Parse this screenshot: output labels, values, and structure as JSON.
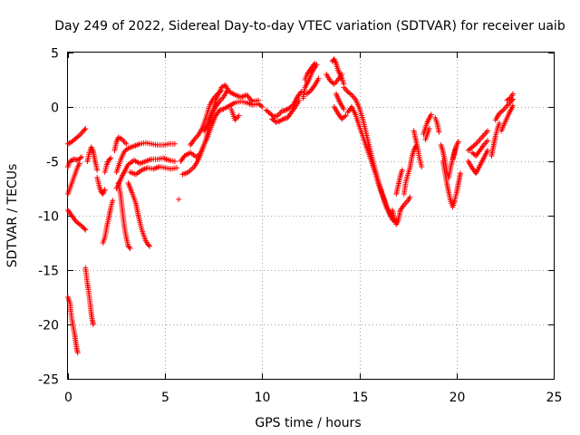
{
  "chart_data": {
    "type": "scatter",
    "title": "Day 249 of 2022, Sidereal Day-to-day VTEC variation (SDTVAR) for receiver uaib",
    "xlabel": "GPS time / hours",
    "ylabel": "SDTVAR / TECUs",
    "xlim": [
      0,
      25
    ],
    "ylim": [
      -25,
      5
    ],
    "xticks": [
      0,
      5,
      10,
      15,
      20,
      25
    ],
    "yticks": [
      -25,
      -20,
      -15,
      -10,
      -5,
      0,
      5
    ],
    "grid": true,
    "marker": "+",
    "color": "#ff0000",
    "segments": [
      [
        [
          0.0,
          -3.4
        ],
        [
          0.2,
          -3.2
        ],
        [
          0.4,
          -2.9
        ],
        [
          0.6,
          -2.6
        ],
        [
          0.8,
          -2.2
        ],
        [
          0.9,
          -2.0
        ]
      ],
      [
        [
          0.0,
          -5.5
        ],
        [
          0.1,
          -5.0
        ],
        [
          0.3,
          -4.8
        ],
        [
          0.5,
          -4.9
        ],
        [
          0.7,
          -4.6
        ]
      ],
      [
        [
          0.0,
          -8.0
        ],
        [
          0.1,
          -7.5
        ],
        [
          0.2,
          -7.0
        ],
        [
          0.3,
          -6.5
        ],
        [
          0.4,
          -6.0
        ],
        [
          0.5,
          -5.5
        ],
        [
          0.6,
          -5.2
        ]
      ],
      [
        [
          0.0,
          -9.5
        ],
        [
          0.2,
          -10.0
        ],
        [
          0.4,
          -10.5
        ],
        [
          0.6,
          -10.8
        ],
        [
          0.8,
          -11.1
        ],
        [
          0.9,
          -11.3
        ]
      ],
      [
        [
          0.0,
          -17.5
        ],
        [
          0.1,
          -18.0
        ],
        [
          0.15,
          -18.8
        ],
        [
          0.2,
          -19.5
        ],
        [
          0.25,
          -20.0
        ],
        [
          0.3,
          -20.5
        ],
        [
          0.35,
          -21.0
        ],
        [
          0.4,
          -21.6
        ],
        [
          0.45,
          -22.2
        ],
        [
          0.5,
          -22.6
        ]
      ],
      [
        [
          0.9,
          -14.8
        ],
        [
          0.95,
          -15.5
        ],
        [
          1.0,
          -16.2
        ],
        [
          1.05,
          -16.8
        ],
        [
          1.1,
          -17.5
        ],
        [
          1.15,
          -18.2
        ],
        [
          1.2,
          -19.0
        ],
        [
          1.25,
          -19.6
        ],
        [
          1.3,
          -20.0
        ]
      ],
      [
        [
          1.0,
          -5.0
        ],
        [
          1.1,
          -4.2
        ],
        [
          1.2,
          -3.7
        ],
        [
          1.3,
          -4.1
        ],
        [
          1.4,
          -5.0
        ],
        [
          1.5,
          -5.8
        ]
      ],
      [
        [
          1.5,
          -6.5
        ],
        [
          1.6,
          -7.2
        ],
        [
          1.7,
          -7.8
        ],
        [
          1.8,
          -8.0
        ],
        [
          1.9,
          -7.6
        ]
      ],
      [
        [
          1.9,
          -6.0
        ],
        [
          2.0,
          -5.3
        ],
        [
          2.1,
          -4.9
        ],
        [
          2.2,
          -4.7
        ]
      ],
      [
        [
          1.8,
          -12.5
        ],
        [
          1.9,
          -12.0
        ],
        [
          2.0,
          -11.0
        ],
        [
          2.1,
          -10.2
        ],
        [
          2.2,
          -9.3
        ],
        [
          2.3,
          -8.6
        ]
      ],
      [
        [
          2.4,
          -4.0
        ],
        [
          2.5,
          -3.2
        ],
        [
          2.6,
          -2.8
        ],
        [
          2.8,
          -3.0
        ],
        [
          3.0,
          -3.4
        ]
      ],
      [
        [
          2.6,
          -7.0
        ],
        [
          2.7,
          -8.0
        ],
        [
          2.8,
          -9.5
        ],
        [
          2.9,
          -11.0
        ],
        [
          3.0,
          -12.0
        ],
        [
          3.1,
          -12.8
        ],
        [
          3.2,
          -13.0
        ]
      ],
      [
        [
          2.5,
          -6.0
        ],
        [
          2.7,
          -4.9
        ],
        [
          2.9,
          -4.1
        ],
        [
          3.1,
          -3.8
        ],
        [
          3.4,
          -3.6
        ],
        [
          3.7,
          -3.4
        ],
        [
          4.0,
          -3.3
        ],
        [
          4.3,
          -3.4
        ],
        [
          4.6,
          -3.5
        ],
        [
          4.9,
          -3.5
        ],
        [
          5.2,
          -3.4
        ],
        [
          5.5,
          -3.4
        ]
      ],
      [
        [
          2.5,
          -7.5
        ],
        [
          2.8,
          -6.3
        ],
        [
          3.1,
          -5.3
        ],
        [
          3.4,
          -4.9
        ],
        [
          3.7,
          -5.2
        ],
        [
          4.0,
          -5.0
        ],
        [
          4.3,
          -4.8
        ],
        [
          4.6,
          -4.8
        ],
        [
          4.9,
          -4.7
        ],
        [
          5.2,
          -4.9
        ],
        [
          5.5,
          -5.0
        ]
      ],
      [
        [
          3.2,
          -6.0
        ],
        [
          3.5,
          -6.2
        ],
        [
          3.8,
          -5.8
        ],
        [
          4.1,
          -5.6
        ],
        [
          4.4,
          -5.7
        ],
        [
          4.7,
          -5.5
        ],
        [
          5.0,
          -5.6
        ],
        [
          5.3,
          -5.7
        ],
        [
          5.6,
          -5.6
        ]
      ],
      [
        [
          3.1,
          -7.0
        ],
        [
          3.3,
          -7.9
        ],
        [
          3.5,
          -8.9
        ],
        [
          3.6,
          -9.8
        ],
        [
          3.7,
          -10.6
        ],
        [
          3.8,
          -11.3
        ],
        [
          3.9,
          -11.8
        ],
        [
          4.0,
          -12.3
        ],
        [
          4.1,
          -12.6
        ],
        [
          4.2,
          -12.8
        ]
      ],
      [
        [
          5.7,
          -8.5
        ]
      ],
      [
        [
          5.8,
          -5.0
        ],
        [
          6.0,
          -4.5
        ],
        [
          6.3,
          -4.2
        ],
        [
          6.6,
          -4.6
        ],
        [
          6.8,
          -4.3
        ],
        [
          7.0,
          -3.5
        ],
        [
          7.2,
          -2.7
        ],
        [
          7.4,
          -1.7
        ],
        [
          7.6,
          -0.8
        ],
        [
          7.8,
          -0.3
        ],
        [
          8.0,
          -0.2
        ],
        [
          8.3,
          0.1
        ],
        [
          8.6,
          0.4
        ],
        [
          8.9,
          0.5
        ],
        [
          9.2,
          0.4
        ],
        [
          9.5,
          0.2
        ],
        [
          9.8,
          0.3
        ],
        [
          10.0,
          0.0
        ]
      ],
      [
        [
          5.9,
          -6.2
        ],
        [
          6.2,
          -6.0
        ],
        [
          6.5,
          -5.5
        ],
        [
          6.7,
          -4.9
        ],
        [
          6.9,
          -4.0
        ],
        [
          7.1,
          -3.0
        ],
        [
          7.3,
          -1.5
        ],
        [
          7.5,
          0.0
        ],
        [
          7.7,
          1.0
        ],
        [
          7.9,
          1.8
        ],
        [
          8.1,
          2.0
        ],
        [
          8.3,
          1.4
        ],
        [
          8.6,
          1.1
        ],
        [
          8.9,
          0.9
        ],
        [
          9.2,
          1.1
        ],
        [
          9.5,
          0.5
        ],
        [
          9.8,
          0.6
        ]
      ],
      [
        [
          6.3,
          -3.5
        ],
        [
          6.5,
          -3.0
        ],
        [
          6.7,
          -2.6
        ],
        [
          6.9,
          -2.0
        ],
        [
          7.1,
          -1.0
        ],
        [
          7.3,
          0.2
        ],
        [
          7.5,
          0.8
        ],
        [
          7.7,
          1.2
        ],
        [
          7.9,
          1.5
        ]
      ],
      [
        [
          7.0,
          -2.2
        ],
        [
          7.2,
          -1.6
        ],
        [
          7.4,
          -0.6
        ],
        [
          7.6,
          0.0
        ],
        [
          7.8,
          0.5
        ],
        [
          8.0,
          0.9
        ],
        [
          8.2,
          1.5
        ]
      ],
      [
        [
          8.4,
          -0.2
        ],
        [
          8.5,
          -0.7
        ],
        [
          8.6,
          -1.2
        ],
        [
          8.8,
          -0.8
        ]
      ],
      [
        [
          10.2,
          -0.3
        ],
        [
          10.4,
          -0.6
        ],
        [
          10.6,
          -0.9
        ],
        [
          10.8,
          -0.8
        ],
        [
          11.0,
          -0.4
        ],
        [
          11.2,
          -0.3
        ],
        [
          11.4,
          -0.1
        ],
        [
          11.6,
          0.2
        ],
        [
          11.8,
          0.9
        ],
        [
          12.0,
          1.4
        ]
      ],
      [
        [
          10.5,
          -1.1
        ],
        [
          10.7,
          -1.4
        ],
        [
          10.9,
          -1.3
        ],
        [
          11.1,
          -1.1
        ],
        [
          11.3,
          -1.0
        ],
        [
          11.5,
          -0.5
        ],
        [
          11.7,
          0.0
        ],
        [
          11.9,
          0.6
        ]
      ],
      [
        [
          12.1,
          0.8
        ],
        [
          12.2,
          1.8
        ],
        [
          12.4,
          2.5
        ],
        [
          12.6,
          3.3
        ],
        [
          12.8,
          3.9
        ]
      ],
      [
        [
          12.2,
          2.5
        ],
        [
          12.3,
          3.0
        ],
        [
          12.5,
          3.5
        ],
        [
          12.7,
          4.0
        ]
      ],
      [
        [
          12.3,
          1.2
        ],
        [
          12.5,
          1.5
        ],
        [
          12.7,
          2.0
        ],
        [
          12.9,
          2.6
        ]
      ],
      [
        [
          13.3,
          3.0
        ],
        [
          13.5,
          2.4
        ],
        [
          13.7,
          2.1
        ],
        [
          13.9,
          2.5
        ],
        [
          14.1,
          3.0
        ]
      ],
      [
        [
          13.6,
          4.2
        ],
        [
          13.7,
          4.4
        ],
        [
          13.8,
          4.0
        ],
        [
          13.9,
          3.4
        ],
        [
          14.0,
          3.0
        ],
        [
          14.1,
          2.6
        ],
        [
          14.2,
          2.1
        ]
      ],
      [
        [
          13.7,
          0.0
        ],
        [
          13.9,
          -0.6
        ],
        [
          14.1,
          -1.1
        ],
        [
          14.3,
          -0.8
        ]
      ],
      [
        [
          13.8,
          1.2
        ],
        [
          13.9,
          0.8
        ],
        [
          14.0,
          0.4
        ],
        [
          14.2,
          -0.2
        ]
      ],
      [
        [
          14.2,
          1.8
        ],
        [
          14.4,
          1.4
        ],
        [
          14.6,
          1.1
        ],
        [
          14.8,
          0.7
        ],
        [
          15.0,
          -0.1
        ],
        [
          15.2,
          -1.3
        ],
        [
          15.4,
          -2.8
        ],
        [
          15.6,
          -4.3
        ],
        [
          15.8,
          -5.7
        ],
        [
          16.0,
          -7.0
        ],
        [
          16.2,
          -8.1
        ],
        [
          16.4,
          -9.1
        ],
        [
          16.6,
          -9.9
        ],
        [
          16.7,
          -10.4
        ]
      ],
      [
        [
          14.4,
          -0.5
        ],
        [
          14.6,
          0.0
        ],
        [
          14.8,
          -0.7
        ],
        [
          15.0,
          -1.8
        ],
        [
          15.2,
          -2.8
        ],
        [
          15.4,
          -3.9
        ],
        [
          15.6,
          -4.9
        ],
        [
          15.8,
          -6.0
        ],
        [
          16.0,
          -7.2
        ],
        [
          16.2,
          -8.2
        ],
        [
          16.4,
          -9.3
        ],
        [
          16.6,
          -10.0
        ],
        [
          16.8,
          -10.5
        ]
      ],
      [
        [
          16.7,
          -9.5
        ],
        [
          16.8,
          -10.3
        ],
        [
          16.9,
          -10.8
        ],
        [
          17.0,
          -10.4
        ],
        [
          17.1,
          -9.6
        ]
      ],
      [
        [
          16.9,
          -8.0
        ],
        [
          17.0,
          -7.2
        ],
        [
          17.1,
          -6.4
        ],
        [
          17.2,
          -5.8
        ]
      ],
      [
        [
          17.1,
          -9.5
        ],
        [
          17.3,
          -9.0
        ],
        [
          17.5,
          -8.6
        ],
        [
          17.6,
          -8.3
        ]
      ],
      [
        [
          17.3,
          -8.0
        ],
        [
          17.4,
          -6.8
        ],
        [
          17.6,
          -5.6
        ],
        [
          17.7,
          -4.6
        ],
        [
          17.8,
          -4.0
        ],
        [
          17.9,
          -3.6
        ]
      ],
      [
        [
          17.8,
          -2.2
        ],
        [
          17.9,
          -3.0
        ],
        [
          18.0,
          -3.8
        ],
        [
          18.1,
          -4.8
        ],
        [
          18.2,
          -5.5
        ]
      ],
      [
        [
          18.3,
          -2.5
        ],
        [
          18.4,
          -1.9
        ],
        [
          18.5,
          -1.4
        ],
        [
          18.6,
          -1.0
        ],
        [
          18.7,
          -0.7
        ]
      ],
      [
        [
          18.4,
          -3.0
        ],
        [
          18.5,
          -2.5
        ],
        [
          18.6,
          -2.0
        ]
      ],
      [
        [
          18.9,
          -1.0
        ],
        [
          19.0,
          -1.5
        ],
        [
          19.1,
          -2.3
        ]
      ],
      [
        [
          19.2,
          -3.5
        ],
        [
          19.3,
          -4.1
        ],
        [
          19.4,
          -5.0
        ],
        [
          19.5,
          -6.0
        ],
        [
          19.6,
          -6.5
        ],
        [
          19.7,
          -5.5
        ],
        [
          19.9,
          -4.2
        ],
        [
          20.0,
          -3.5
        ]
      ],
      [
        [
          19.3,
          -5.0
        ],
        [
          19.4,
          -6.0
        ],
        [
          19.5,
          -7.0
        ],
        [
          19.6,
          -7.9
        ],
        [
          19.7,
          -8.7
        ],
        [
          19.8,
          -9.2
        ],
        [
          19.9,
          -8.6
        ],
        [
          20.0,
          -7.9
        ],
        [
          20.1,
          -7.0
        ],
        [
          20.2,
          -6.1
        ]
      ],
      [
        [
          19.8,
          -4.8
        ],
        [
          19.9,
          -4.1
        ],
        [
          20.0,
          -3.5
        ],
        [
          20.1,
          -3.2
        ]
      ],
      [
        [
          20.6,
          -4.0
        ],
        [
          20.8,
          -3.7
        ],
        [
          21.0,
          -3.4
        ],
        [
          21.2,
          -3.0
        ],
        [
          21.4,
          -2.6
        ],
        [
          21.6,
          -2.2
        ]
      ],
      [
        [
          20.6,
          -5.0
        ],
        [
          20.8,
          -5.6
        ],
        [
          21.0,
          -6.1
        ],
        [
          21.2,
          -5.4
        ],
        [
          21.4,
          -4.7
        ],
        [
          21.6,
          -4.0
        ]
      ],
      [
        [
          20.8,
          -4.2
        ],
        [
          21.0,
          -4.5
        ],
        [
          21.2,
          -4.0
        ],
        [
          21.4,
          -3.5
        ],
        [
          21.6,
          -3.1
        ]
      ],
      [
        [
          21.8,
          -4.5
        ],
        [
          21.9,
          -3.6
        ],
        [
          22.0,
          -2.7
        ],
        [
          22.1,
          -2.0
        ],
        [
          22.2,
          -1.5
        ]
      ],
      [
        [
          22.0,
          -1.2
        ],
        [
          22.2,
          -0.6
        ],
        [
          22.4,
          -0.3
        ],
        [
          22.6,
          0.1
        ],
        [
          22.8,
          0.5
        ],
        [
          22.9,
          0.7
        ]
      ],
      [
        [
          22.3,
          -2.2
        ],
        [
          22.5,
          -1.4
        ],
        [
          22.7,
          -0.6
        ],
        [
          22.9,
          0.1
        ]
      ],
      [
        [
          22.6,
          0.6
        ],
        [
          22.8,
          0.9
        ],
        [
          22.9,
          1.2
        ]
      ]
    ]
  }
}
